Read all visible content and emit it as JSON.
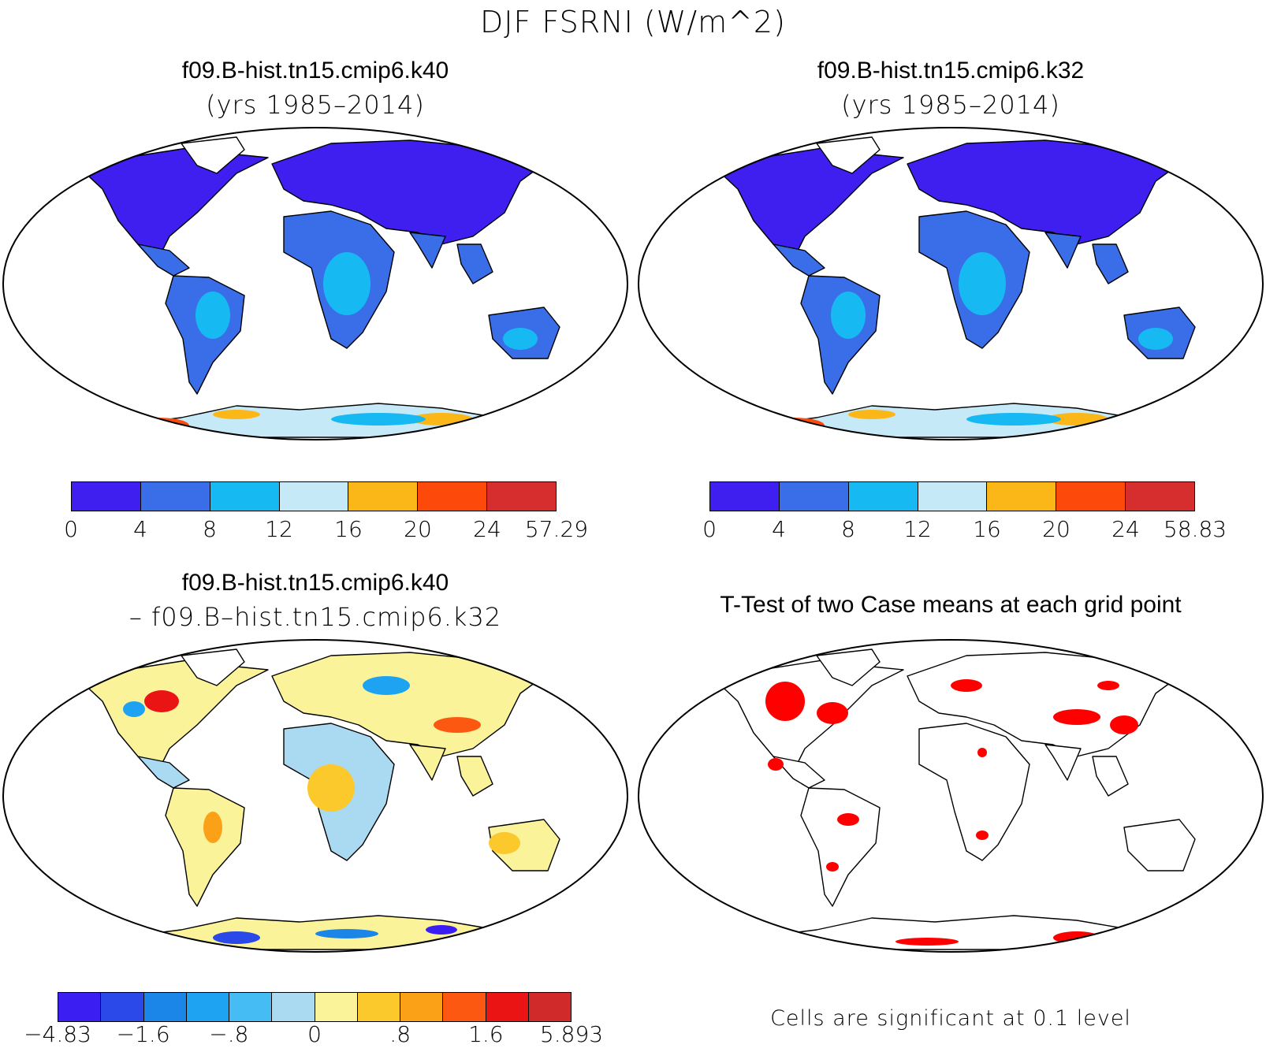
{
  "figure": {
    "title": "DJF FSRNI (W/m^2)"
  },
  "panels": [
    {
      "title": "f09.B-hist.tn15.cmip6.k40",
      "subtitle": "(yrs 1985–2014)",
      "colorbar": {
        "colors": [
          "#3f1ff0",
          "#3a6ee8",
          "#17b9f2",
          "#c6e9f7",
          "#fbb718",
          "#fd4a0a",
          "#d62e2e"
        ],
        "ticks": [
          "0",
          "4",
          "8",
          "12",
          "16",
          "20",
          "24",
          "57.29"
        ]
      }
    },
    {
      "title": "f09.B-hist.tn15.cmip6.k32",
      "subtitle": "(yrs 1985–2014)",
      "colorbar": {
        "colors": [
          "#3f1ff0",
          "#3a6ee8",
          "#17b9f2",
          "#c6e9f7",
          "#fbb718",
          "#fd4a0a",
          "#d62e2e"
        ],
        "ticks": [
          "0",
          "4",
          "8",
          "12",
          "16",
          "20",
          "24",
          "58.83"
        ]
      }
    },
    {
      "title": "f09.B-hist.tn15.cmip6.k40",
      "subtitle": "– f09.B–hist.tn15.cmip6.k32",
      "colorbar": {
        "colors": [
          "#3a1ef2",
          "#2a49e8",
          "#1c86e8",
          "#1ea3f2",
          "#45bdf4",
          "#a9daf2",
          "#fbf39a",
          "#fbc92c",
          "#fba118",
          "#fd5812",
          "#ea1414",
          "#d12a2a"
        ],
        "ticks": [
          "−4.83",
          "−1.6",
          "−.8",
          "0",
          ".8",
          "1.6",
          "5.893"
        ]
      }
    },
    {
      "title": "T-Test of two Case means at each grid point",
      "note": "Cells are significant at 0.1 level",
      "significant_color": "#ff0000"
    }
  ]
}
